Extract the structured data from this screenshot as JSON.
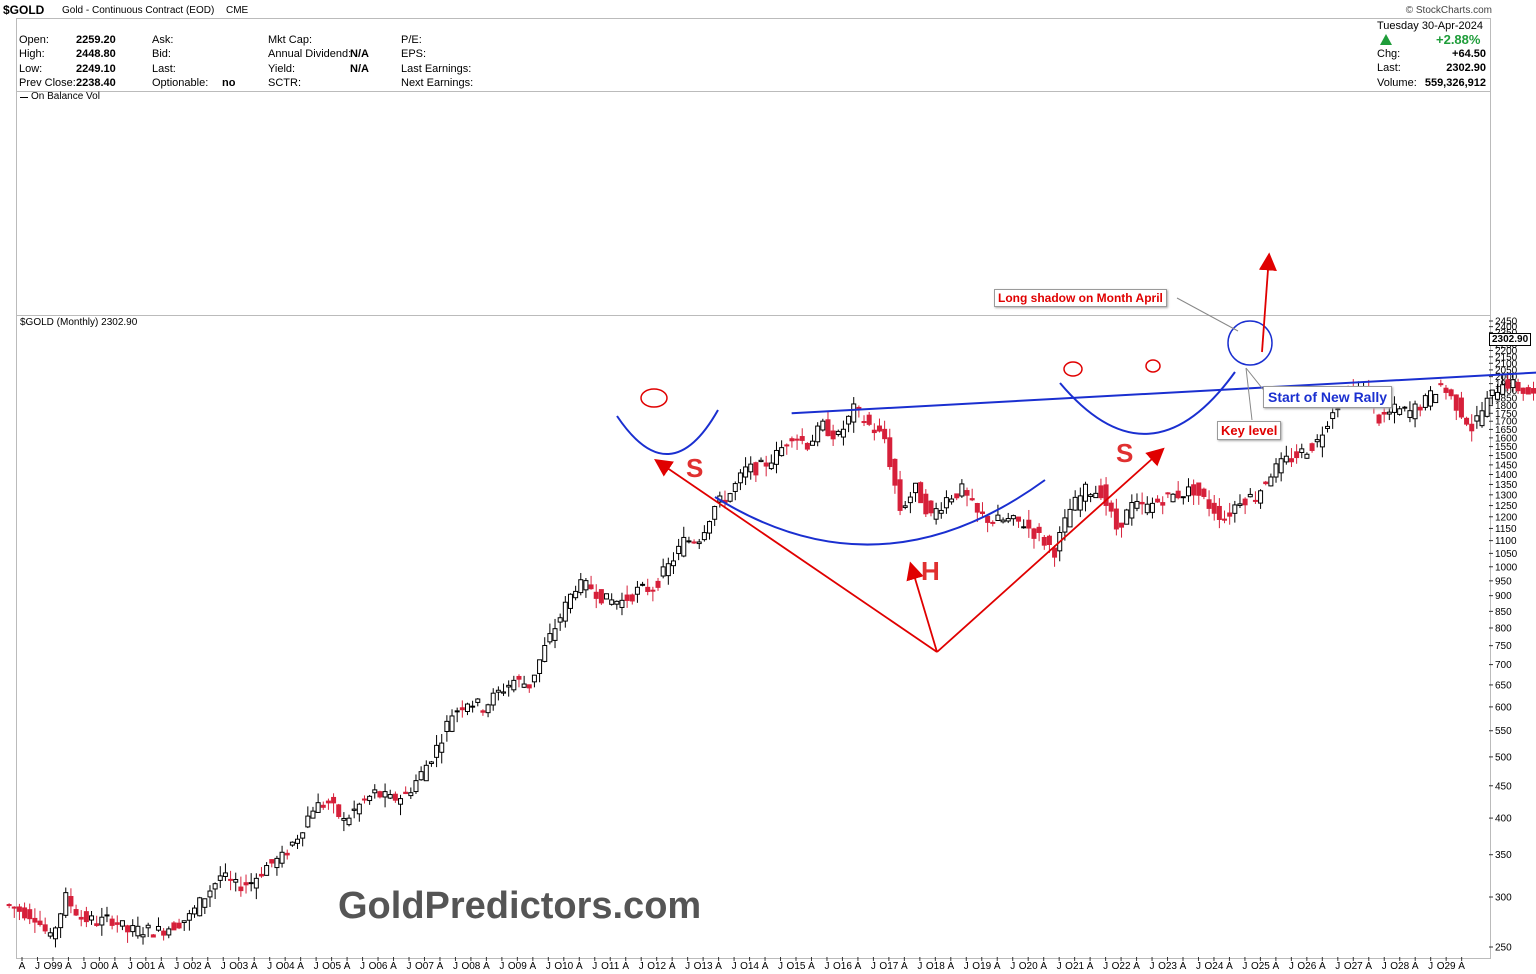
{
  "header": {
    "symbol": "$GOLD",
    "name": "Gold - Continuous Contract (EOD)",
    "exchange": "CME",
    "brand": "© StockCharts.com",
    "date": "Tuesday  30-Apr-2024",
    "pct_change": "+2.88%",
    "col1": [
      {
        "label": "Open:",
        "value": "2259.20"
      },
      {
        "label": "High:",
        "value": "2448.80"
      },
      {
        "label": "Low:",
        "value": "2249.10"
      },
      {
        "label": "Prev Close:",
        "value": "2238.40"
      }
    ],
    "col2": [
      {
        "label": "Ask:",
        "value": ""
      },
      {
        "label": "Bid:",
        "value": ""
      },
      {
        "label": "Last:",
        "value": ""
      },
      {
        "label": "Optionable:",
        "value": "no"
      }
    ],
    "col3": [
      {
        "label": "Mkt Cap:",
        "value": ""
      },
      {
        "label": "Annual Dividend:",
        "value": "N/A"
      },
      {
        "label": "Yield:",
        "value": "N/A"
      },
      {
        "label": "SCTR:",
        "value": ""
      }
    ],
    "col4": [
      {
        "label": "P/E:"
      },
      {
        "label": "EPS:"
      },
      {
        "label": "Last Earnings:"
      },
      {
        "label": "Next Earnings:"
      }
    ],
    "col5": [
      {
        "label": "Chg:",
        "value": "+64.50"
      },
      {
        "label": "Last:",
        "value": "2302.90"
      },
      {
        "label": "Volume:",
        "value": "559,326,912"
      }
    ]
  },
  "panels": {
    "obv_title": "On Balance Vol",
    "price_title": "$GOLD (Monthly) 2302.90",
    "last_price_tag": "2302.90"
  },
  "annotations": {
    "long_shadow": "Long shadow on Month April",
    "start_rally": "Start of New Rally",
    "key_level": "Key level",
    "s_left": "S",
    "s_right": "S",
    "head": "H"
  },
  "watermark": "GoldPredictors.com",
  "colors": {
    "up": "#000000",
    "down": "#d6203a",
    "pattern": "#1a2fd0",
    "arrows": "#e00000"
  },
  "chart_data": {
    "type": "candlestick",
    "title": "$GOLD (Monthly) 2302.90",
    "scale": "log",
    "ylim": [
      250,
      2450
    ],
    "y_ticks": [
      250,
      300,
      350,
      400,
      450,
      500,
      550,
      600,
      650,
      700,
      750,
      800,
      850,
      900,
      950,
      1000,
      1050,
      1100,
      1150,
      1200,
      1250,
      1300,
      1350,
      1400,
      1450,
      1500,
      1550,
      1600,
      1650,
      1700,
      1750,
      1800,
      1850,
      1900,
      1950,
      2000,
      2050,
      2100,
      2150,
      2200,
      2250,
      2300,
      2350,
      2400,
      2450
    ],
    "x_tick_labels": [
      "A",
      "J",
      "O99",
      "A",
      "J",
      "O00",
      "A",
      "J",
      "O01",
      "A",
      "J",
      "O02",
      "A",
      "J",
      "O03",
      "A",
      "J",
      "O04",
      "A",
      "J",
      "O05",
      "A",
      "J",
      "O06",
      "A",
      "J",
      "O07",
      "A",
      "J",
      "O08",
      "A",
      "J",
      "O09",
      "A",
      "J",
      "O10",
      "A",
      "J",
      "O11",
      "A",
      "J",
      "O12",
      "A",
      "J",
      "O13",
      "A",
      "J",
      "O14",
      "A",
      "J",
      "O15",
      "A",
      "J",
      "O16",
      "A",
      "J",
      "O17",
      "A",
      "J",
      "O18",
      "A",
      "J",
      "O19",
      "A",
      "J",
      "O20",
      "A",
      "J",
      "O21",
      "A",
      "J",
      "O22",
      "A",
      "J",
      "O23",
      "A",
      "J",
      "O24",
      "A",
      "J",
      "O25",
      "A",
      "J",
      "O26",
      "A",
      "J",
      "O27",
      "A",
      "J",
      "O28",
      "A",
      "J",
      "O29",
      "A"
    ],
    "neckline": {
      "start": {
        "date": "2011-08",
        "price": 1750
      },
      "end": {
        "date": "2024-04",
        "price": 2060
      }
    },
    "closes_quarterly": [
      [
        "1998-10",
        292
      ],
      [
        "1999-01",
        286
      ],
      [
        "1999-04",
        280
      ],
      [
        "1999-07",
        257
      ],
      [
        "1999-10",
        299
      ],
      [
        "2000-01",
        278
      ],
      [
        "2000-04",
        274
      ],
      [
        "2000-07",
        277
      ],
      [
        "2000-10",
        265
      ],
      [
        "2001-01",
        266
      ],
      [
        "2001-04",
        265
      ],
      [
        "2001-07",
        271
      ],
      [
        "2001-10",
        279
      ],
      [
        "2002-01",
        301
      ],
      [
        "2002-04",
        324
      ],
      [
        "2002-07",
        312
      ],
      [
        "2002-10",
        317
      ],
      [
        "2003-01",
        336
      ],
      [
        "2003-04",
        346
      ],
      [
        "2003-07",
        375
      ],
      [
        "2003-10",
        416
      ],
      [
        "2004-01",
        423
      ],
      [
        "2004-04",
        395
      ],
      [
        "2004-07",
        419
      ],
      [
        "2004-10",
        438
      ],
      [
        "2005-01",
        428
      ],
      [
        "2005-04",
        435
      ],
      [
        "2005-07",
        470
      ],
      [
        "2005-10",
        517
      ],
      [
        "2006-01",
        586
      ],
      [
        "2006-04",
        614
      ],
      [
        "2006-07",
        599
      ],
      [
        "2006-10",
        632
      ],
      [
        "2007-01",
        661
      ],
      [
        "2007-04",
        650
      ],
      [
        "2007-07",
        743
      ],
      [
        "2007-10",
        834
      ],
      [
        "2008-01",
        933
      ],
      [
        "2008-04",
        928
      ],
      [
        "2008-07",
        884
      ],
      [
        "2008-10",
        882
      ],
      [
        "2009-01",
        916
      ],
      [
        "2009-04",
        927
      ],
      [
        "2009-07",
        1001
      ],
      [
        "2009-10",
        1097
      ],
      [
        "2010-01",
        1113
      ],
      [
        "2010-04",
        1245
      ],
      [
        "2010-07",
        1307
      ],
      [
        "2010-10",
        1421
      ],
      [
        "2011-01",
        1439
      ],
      [
        "2011-04",
        1502
      ],
      [
        "2011-07",
        1623
      ],
      [
        "2011-10",
        1565
      ],
      [
        "2012-01",
        1669
      ],
      [
        "2012-04",
        1604
      ],
      [
        "2012-07",
        1772
      ],
      [
        "2012-10",
        1675
      ],
      [
        "2013-01",
        1595
      ],
      [
        "2013-04",
        1234
      ],
      [
        "2013-07",
        1327
      ],
      [
        "2013-10",
        1202
      ],
      [
        "2014-01",
        1284
      ],
      [
        "2014-04",
        1322
      ],
      [
        "2014-07",
        1210
      ],
      [
        "2014-10",
        1183
      ],
      [
        "2015-01",
        1183
      ],
      [
        "2015-04",
        1171
      ],
      [
        "2015-07",
        1115
      ],
      [
        "2015-10",
        1061
      ],
      [
        "2016-01",
        1232
      ],
      [
        "2016-04",
        1320
      ],
      [
        "2016-07",
        1316
      ],
      [
        "2016-10",
        1152
      ],
      [
        "2017-01",
        1247
      ],
      [
        "2017-04",
        1241
      ],
      [
        "2017-07",
        1283
      ],
      [
        "2017-10",
        1303
      ],
      [
        "2018-01",
        1325
      ],
      [
        "2018-04",
        1252
      ],
      [
        "2018-07",
        1192
      ],
      [
        "2018-10",
        1281
      ],
      [
        "2019-01",
        1292
      ],
      [
        "2019-04",
        1409
      ],
      [
        "2019-07",
        1472
      ],
      [
        "2019-10",
        1517
      ],
      [
        "2020-01",
        1577
      ],
      [
        "2020-04",
        1781
      ],
      [
        "2020-07",
        1886
      ],
      [
        "2020-10",
        1898
      ],
      [
        "2021-01",
        1713
      ],
      [
        "2021-04",
        1770
      ],
      [
        "2021-07",
        1757
      ],
      [
        "2021-10",
        1828
      ],
      [
        "2022-01",
        1942
      ],
      [
        "2022-04",
        1807
      ],
      [
        "2022-07",
        1660
      ],
      [
        "2022-10",
        1824
      ],
      [
        "2023-01",
        1969
      ],
      [
        "2023-04",
        1919
      ],
      [
        "2023-07",
        1866
      ],
      [
        "2023-10",
        2063
      ],
      [
        "2024-01",
        2217
      ],
      [
        "2024-04",
        2302.9
      ]
    ]
  }
}
